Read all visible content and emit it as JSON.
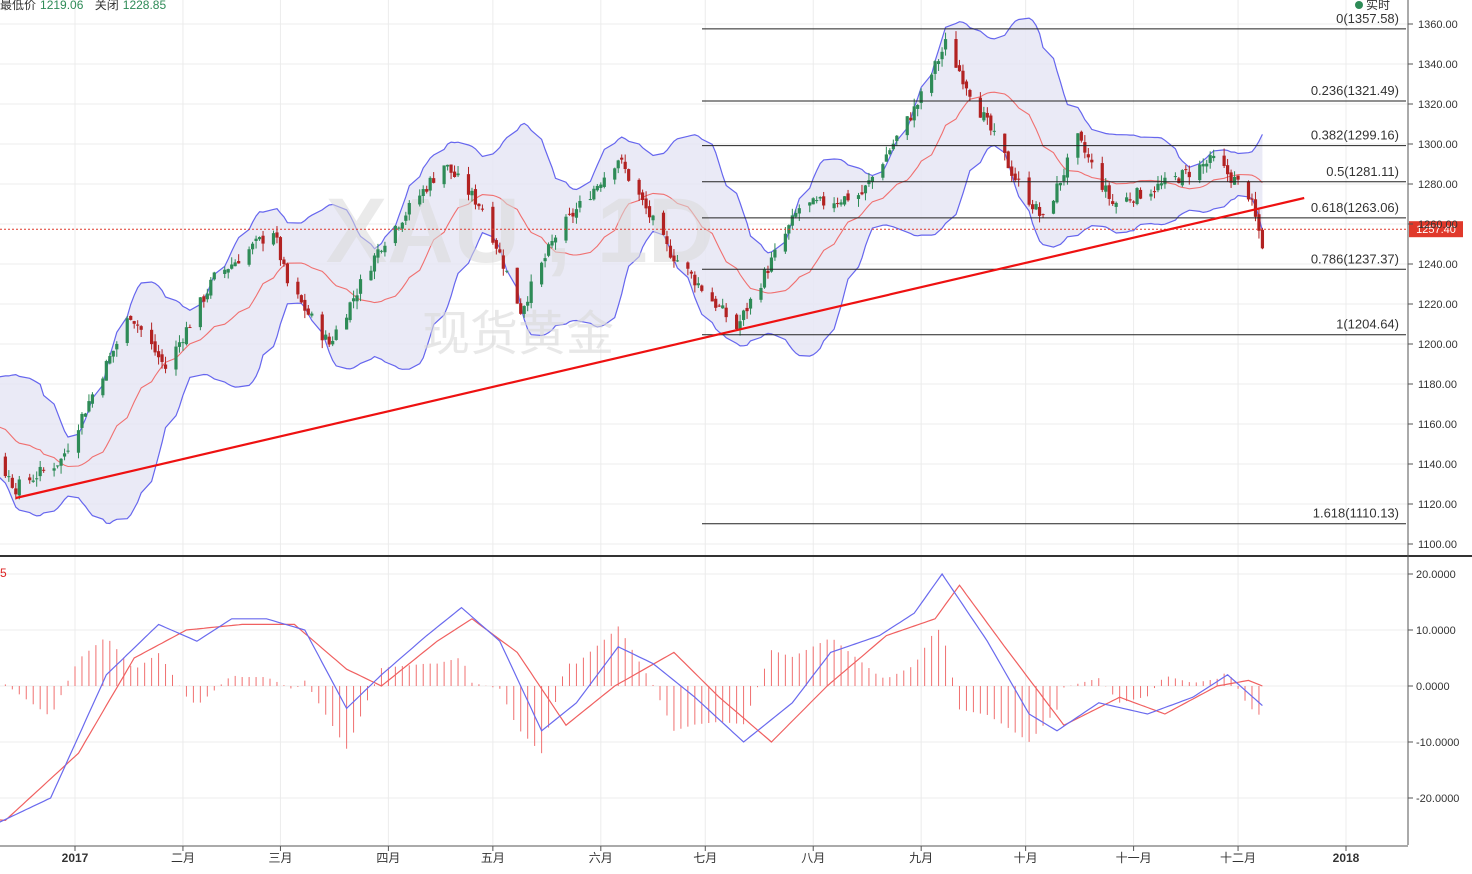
{
  "header": {
    "low_label": "最低价",
    "low_value": "1219.06",
    "close_label": "关闭",
    "close_value": "1228.85",
    "live_label": "实时"
  },
  "indicator_label": "5",
  "colors": {
    "up_candle": "#2e8b57",
    "down_candle": "#b22222",
    "bollinger_band": "#6666ee",
    "bollinger_fill": "#e6e6f4",
    "moving_average": "#f07070",
    "trendline": "#ee1111",
    "price_tag": "#e0392b",
    "macd_line": "#6a6aee",
    "signal_line": "#f06060",
    "histogram": "#f07070"
  },
  "chart_data": [
    {
      "type": "candlestick",
      "symbol": "XAU , 1D",
      "watermark": "XAU , 1D",
      "watermark_sub": "现货黄金",
      "x_ticks": [
        "2017",
        "二月",
        "三月",
        "四月",
        "五月",
        "六月",
        "七月",
        "八月",
        "九月",
        "十月",
        "十一月",
        "十二月",
        "2018"
      ],
      "y_ticks": [
        "1360.00",
        "1340.00",
        "1320.00",
        "1300.00",
        "1280.00",
        "1260.00",
        "1240.00",
        "1220.00",
        "1200.00",
        "1180.00",
        "1160.00",
        "1140.00",
        "1120.00",
        "1100.00"
      ],
      "ylim": [
        1095,
        1365
      ],
      "grid": true,
      "current_price": 1257.4,
      "current_price_label": "1257.40",
      "fibonacci_levels": [
        {
          "label": "0(1357.58)",
          "value": 1357.58
        },
        {
          "label": "0.236(1321.49)",
          "value": 1321.49
        },
        {
          "label": "0.382(1299.16)",
          "value": 1299.16
        },
        {
          "label": "0.5(1281.11)",
          "value": 1281.11
        },
        {
          "label": "0.618(1263.06)",
          "value": 1263.06
        },
        {
          "label": "0.786(1237.37)",
          "value": 1237.37
        },
        {
          "label": "1(1204.64)",
          "value": 1204.64
        },
        {
          "label": "1.618(1110.13)",
          "value": 1110.13
        }
      ],
      "trendline": {
        "start": [
          "2016-12-15",
          1123
        ],
        "end": [
          "2017-12-20",
          1273
        ]
      },
      "close_path": [
        [
          "2016-11-25",
          1180
        ],
        [
          "2016-12-15",
          1128
        ],
        [
          "2016-12-28",
          1142
        ],
        [
          "2017-01-17",
          1215
        ],
        [
          "2017-01-27",
          1188
        ],
        [
          "2017-02-10",
          1233
        ],
        [
          "2017-02-27",
          1257
        ],
        [
          "2017-03-03",
          1230
        ],
        [
          "2017-03-15",
          1200
        ],
        [
          "2017-03-30",
          1250
        ],
        [
          "2017-04-17",
          1290
        ],
        [
          "2017-04-28",
          1268
        ],
        [
          "2017-05-09",
          1217
        ],
        [
          "2017-05-19",
          1254
        ],
        [
          "2017-06-06",
          1293
        ],
        [
          "2017-06-20",
          1248
        ],
        [
          "2017-07-10",
          1208
        ],
        [
          "2017-07-28",
          1268
        ],
        [
          "2017-08-15",
          1275
        ],
        [
          "2017-08-31",
          1320
        ],
        [
          "2017-09-08",
          1350
        ],
        [
          "2017-09-14",
          1330
        ],
        [
          "2017-09-28",
          1283
        ],
        [
          "2017-10-06",
          1262
        ],
        [
          "2017-10-16",
          1302
        ],
        [
          "2017-10-26",
          1270
        ],
        [
          "2017-11-10",
          1280
        ],
        [
          "2017-11-24",
          1292
        ],
        [
          "2017-12-04",
          1275
        ],
        [
          "2017-12-08",
          1250
        ]
      ]
    },
    {
      "type": "line",
      "name": "MACD",
      "y_ticks": [
        "20.0000",
        "10.0000",
        "0.0000",
        "-10.0000",
        "-20.0000"
      ],
      "ylim": [
        -27,
        22
      ],
      "macd_path": [
        [
          "2016-11-20",
          -24
        ],
        [
          "2016-12-08",
          -25
        ],
        [
          "2016-12-25",
          -20
        ],
        [
          "2017-01-10",
          2
        ],
        [
          "2017-01-25",
          11
        ],
        [
          "2017-02-05",
          8
        ],
        [
          "2017-02-15",
          12
        ],
        [
          "2017-02-25",
          12
        ],
        [
          "2017-03-08",
          10
        ],
        [
          "2017-03-20",
          -4
        ],
        [
          "2017-03-30",
          2
        ],
        [
          "2017-04-12",
          9
        ],
        [
          "2017-04-22",
          14
        ],
        [
          "2017-05-03",
          8
        ],
        [
          "2017-05-15",
          -8
        ],
        [
          "2017-05-25",
          -3
        ],
        [
          "2017-06-06",
          7
        ],
        [
          "2017-06-16",
          4
        ],
        [
          "2017-06-28",
          -2
        ],
        [
          "2017-07-12",
          -10
        ],
        [
          "2017-07-26",
          -3
        ],
        [
          "2017-08-06",
          6
        ],
        [
          "2017-08-20",
          9
        ],
        [
          "2017-08-30",
          13
        ],
        [
          "2017-09-07",
          20
        ],
        [
          "2017-09-20",
          8
        ],
        [
          "2017-10-02",
          -5
        ],
        [
          "2017-10-10",
          -8
        ],
        [
          "2017-10-22",
          -3
        ],
        [
          "2017-11-05",
          -5
        ],
        [
          "2017-11-18",
          -2
        ],
        [
          "2017-11-28",
          2
        ],
        [
          "2017-12-08",
          -3.5
        ]
      ],
      "signal_path": [
        [
          "2016-11-20",
          -23
        ],
        [
          "2016-12-12",
          -24
        ],
        [
          "2017-01-02",
          -12
        ],
        [
          "2017-01-18",
          5
        ],
        [
          "2017-02-02",
          10
        ],
        [
          "2017-02-18",
          11
        ],
        [
          "2017-03-05",
          11
        ],
        [
          "2017-03-20",
          3
        ],
        [
          "2017-03-30",
          0
        ],
        [
          "2017-04-15",
          8
        ],
        [
          "2017-04-25",
          12
        ],
        [
          "2017-05-08",
          6
        ],
        [
          "2017-05-22",
          -7
        ],
        [
          "2017-06-05",
          0
        ],
        [
          "2017-06-22",
          6
        ],
        [
          "2017-07-05",
          -2
        ],
        [
          "2017-07-20",
          -10
        ],
        [
          "2017-08-05",
          0
        ],
        [
          "2017-08-22",
          9
        ],
        [
          "2017-09-05",
          12
        ],
        [
          "2017-09-12",
          18
        ],
        [
          "2017-09-25",
          7
        ],
        [
          "2017-10-12",
          -7
        ],
        [
          "2017-10-28",
          -2
        ],
        [
          "2017-11-10",
          -5
        ],
        [
          "2017-11-25",
          0
        ],
        [
          "2017-12-04",
          1
        ],
        [
          "2017-12-08",
          0
        ]
      ]
    }
  ]
}
